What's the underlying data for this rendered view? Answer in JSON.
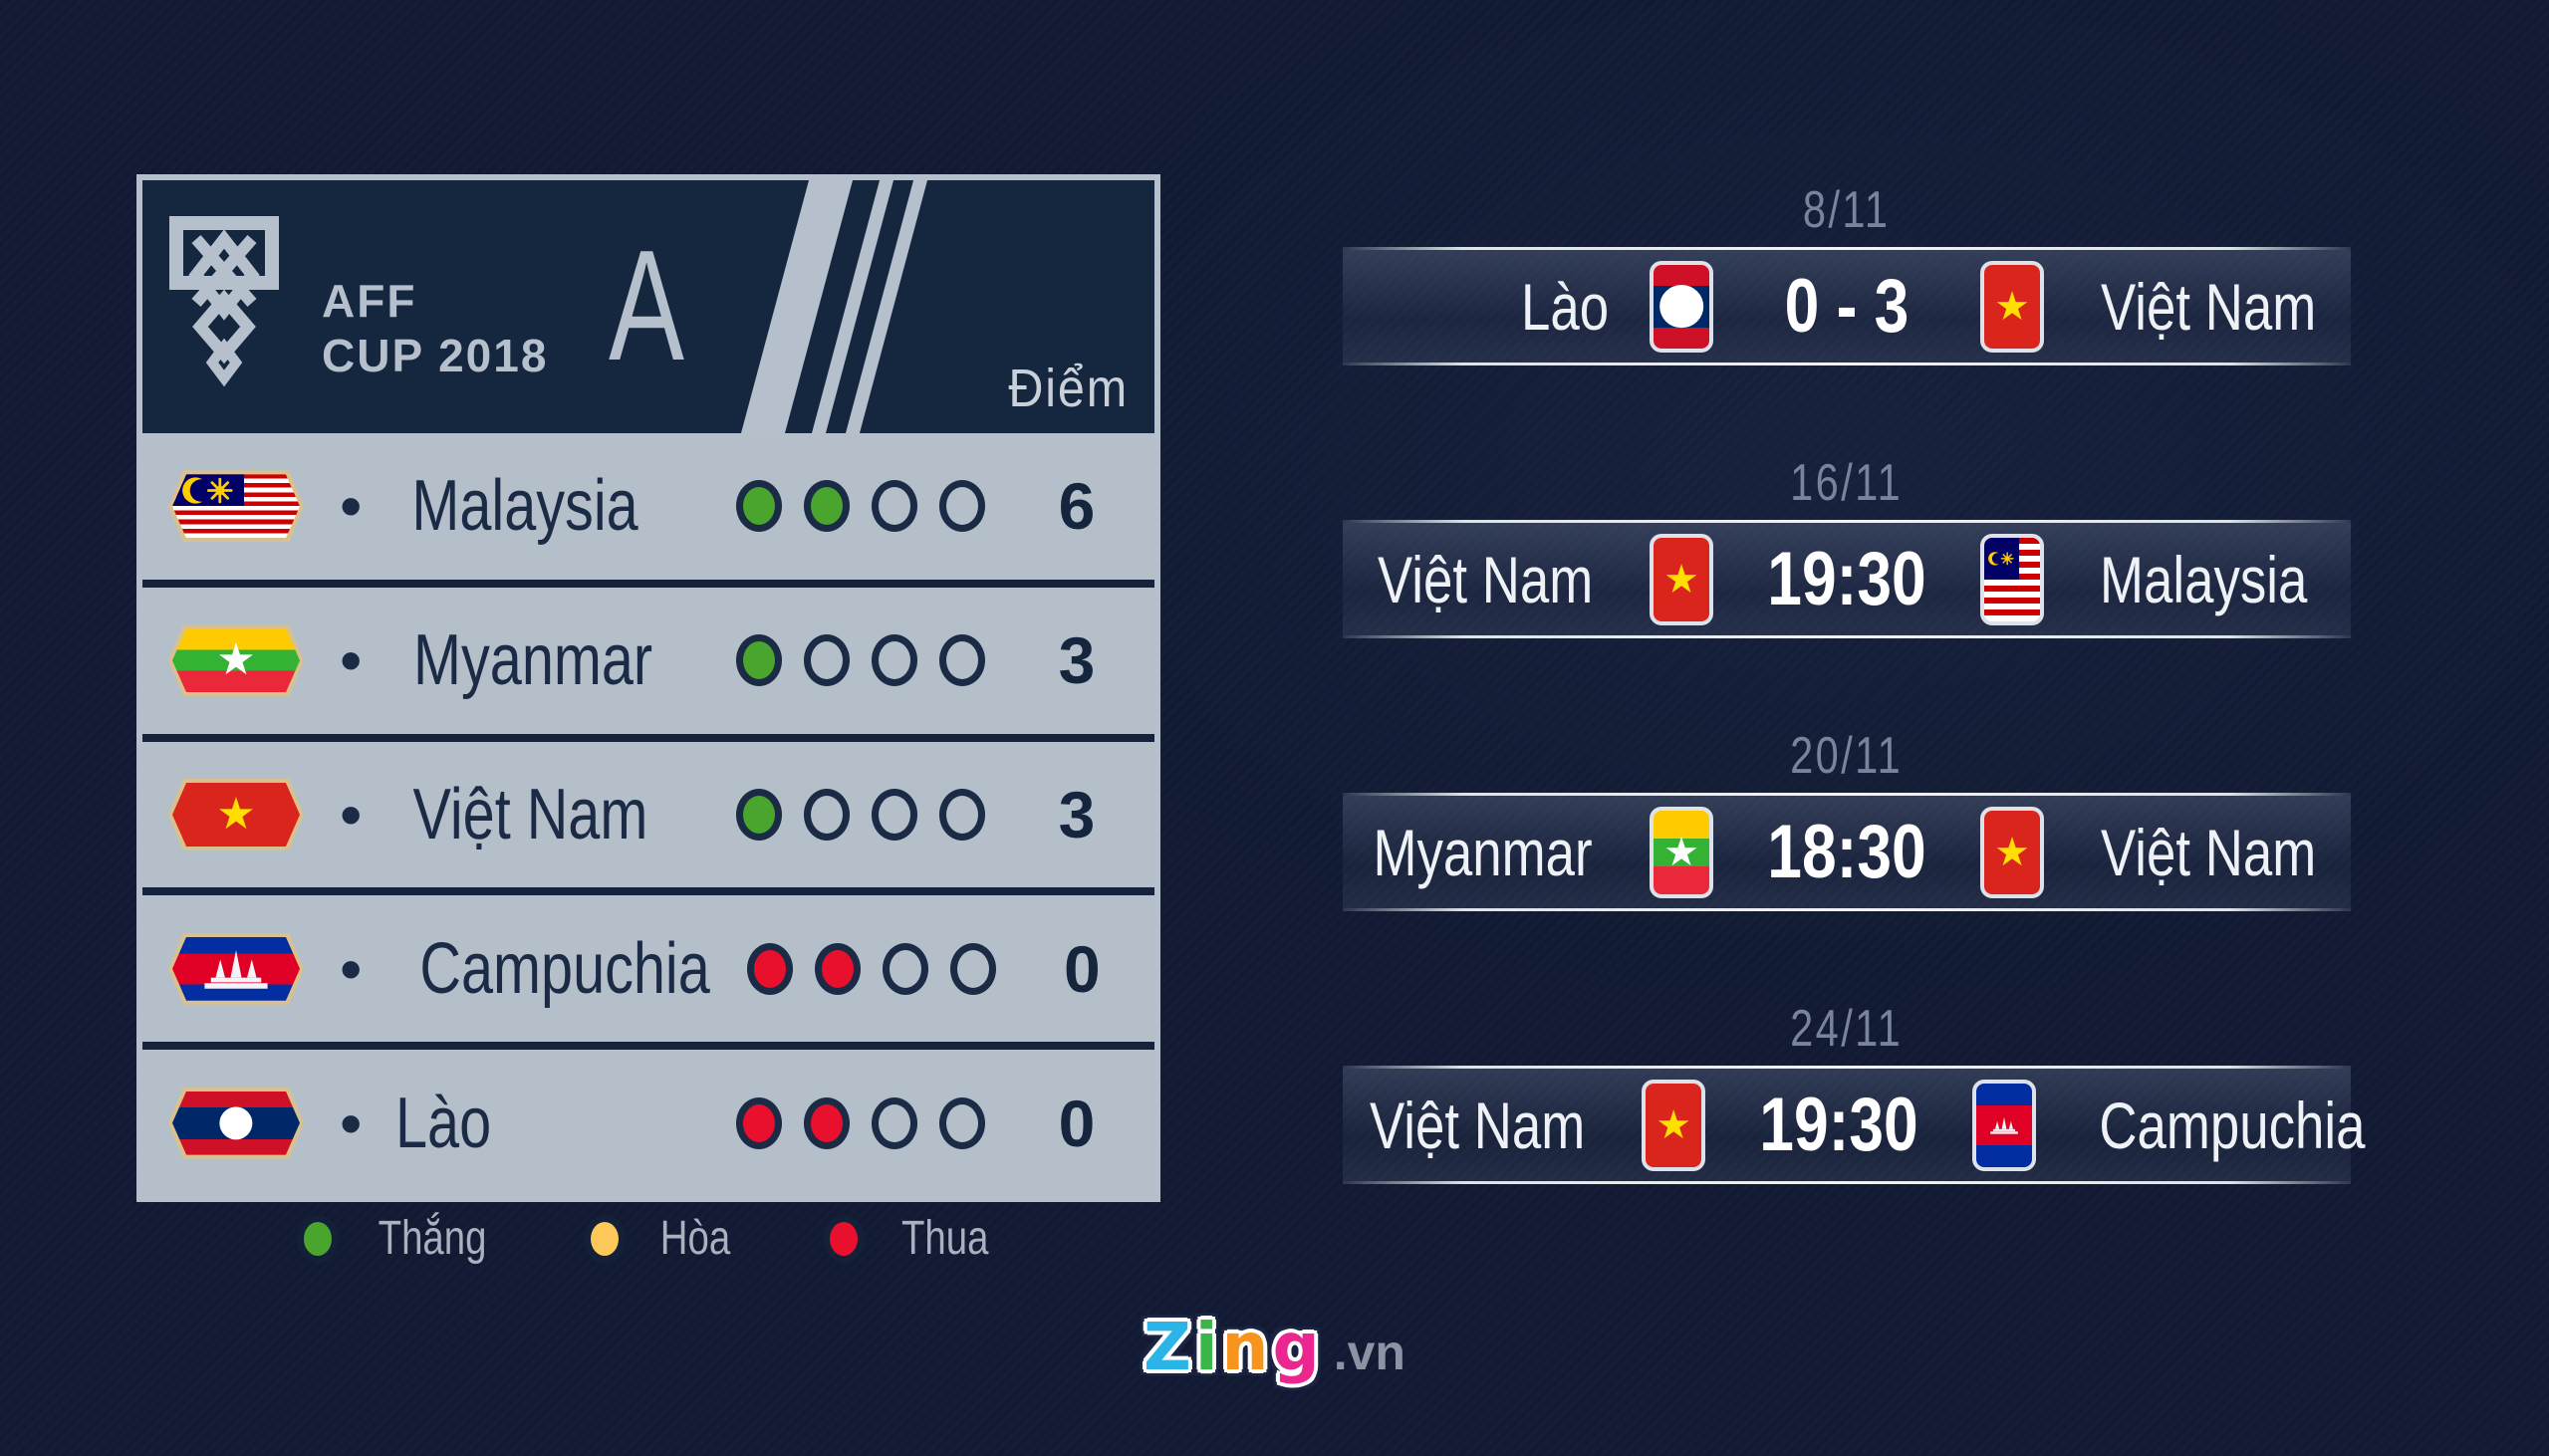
{
  "colors": {
    "background": "#111a33",
    "panel_header": "#15263f",
    "panel_row_bg": "#b5bfca",
    "divider": "#15233c",
    "accent_light": "#b6c0cc",
    "win": "#4aa52e",
    "draw": "#fbc859",
    "lose": "#e8102d",
    "text_dark": "#1b2b45",
    "text_light": "#eef1f6",
    "date_text": "#79839a"
  },
  "standings": {
    "logo_line1": "AFF",
    "logo_line2": "CUP 2018",
    "group_letter": "A",
    "points_header": "Điểm",
    "bullet": "•",
    "rows": [
      {
        "team": "Malaysia",
        "flag": "malaysia",
        "results": [
          "win",
          "win",
          "empty",
          "empty"
        ],
        "points": "6"
      },
      {
        "team": "Myanmar",
        "flag": "myanmar",
        "results": [
          "win",
          "empty",
          "empty",
          "empty"
        ],
        "points": "3"
      },
      {
        "team": "Việt Nam",
        "flag": "vietnam",
        "results": [
          "win",
          "empty",
          "empty",
          "empty"
        ],
        "points": "3"
      },
      {
        "team": "Campuchia",
        "flag": "cambodia",
        "results": [
          "lose",
          "lose",
          "empty",
          "empty"
        ],
        "points": "0"
      },
      {
        "team": "Lào",
        "flag": "laos",
        "results": [
          "lose",
          "lose",
          "empty",
          "empty"
        ],
        "points": "0"
      }
    ],
    "legend": [
      {
        "label": "Thắng",
        "color": "#4aa52e"
      },
      {
        "label": "Hòa",
        "color": "#fbc859"
      },
      {
        "label": "Thua",
        "color": "#e8102d"
      }
    ]
  },
  "fixtures": [
    {
      "date": "8/11",
      "home": "Lào",
      "home_flag": "laos",
      "center": "0 - 3",
      "away": "Việt Nam",
      "away_flag": "vietnam"
    },
    {
      "date": "16/11",
      "home": "Việt Nam",
      "home_flag": "vietnam",
      "center": "19:30",
      "away": "Malaysia",
      "away_flag": "malaysia"
    },
    {
      "date": "20/11",
      "home": "Myanmar",
      "home_flag": "myanmar",
      "center": "18:30",
      "away": "Việt Nam",
      "away_flag": "vietnam"
    },
    {
      "date": "24/11",
      "home": "Việt Nam",
      "home_flag": "vietnam",
      "center": "19:30",
      "away": "Campuchia",
      "away_flag": "cambodia"
    }
  ],
  "footer": {
    "letters": [
      {
        "char": "Z",
        "color": "#2bb4e8"
      },
      {
        "char": "i",
        "color": "#3ab54a"
      },
      {
        "char": "n",
        "color": "#f7941e"
      },
      {
        "char": "g",
        "color": "#ec268f"
      }
    ],
    "domain": ".vn"
  }
}
